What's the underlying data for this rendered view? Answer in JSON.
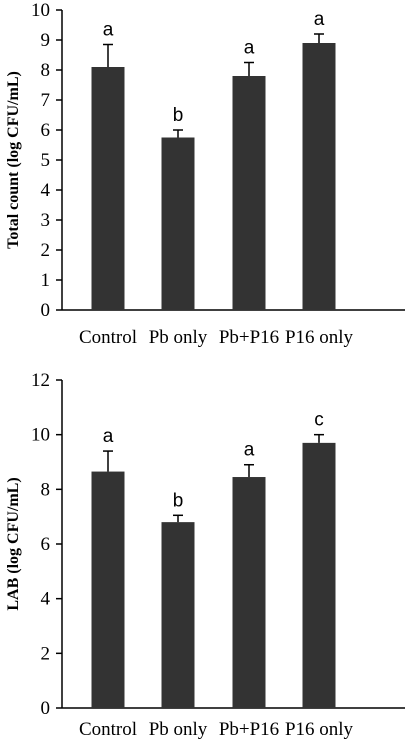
{
  "chart_data": [
    {
      "type": "bar",
      "categories": [
        "Control",
        "Pb only",
        "Pb+P16",
        "P16 only"
      ],
      "values": [
        8.1,
        5.75,
        7.8,
        8.9
      ],
      "errors": [
        0.75,
        0.25,
        0.45,
        0.3
      ],
      "significance": [
        "a",
        "b",
        "a",
        "a"
      ],
      "title": "",
      "xlabel": "",
      "ylabel": "Total count (log CFU/mL)",
      "ylim": [
        0,
        10
      ],
      "yticks": [
        "0",
        "1",
        "2",
        "3",
        "4",
        "5",
        "6",
        "7",
        "8",
        "9",
        "10"
      ],
      "bar_color": "#333333",
      "grid": false,
      "legend": "none"
    },
    {
      "type": "bar",
      "categories": [
        "Control",
        "Pb only",
        "Pb+P16",
        "P16 only"
      ],
      "values": [
        8.65,
        6.8,
        8.45,
        9.7
      ],
      "errors": [
        0.75,
        0.25,
        0.45,
        0.3
      ],
      "significance": [
        "a",
        "b",
        "a",
        "c"
      ],
      "title": "",
      "xlabel": "",
      "ylabel": "LAB (log CFU/mL)",
      "ylim": [
        0,
        12
      ],
      "yticks": [
        "0",
        "2",
        "4",
        "6",
        "8",
        "10",
        "12"
      ],
      "bar_color": "#333333",
      "grid": false,
      "legend": "none"
    }
  ]
}
